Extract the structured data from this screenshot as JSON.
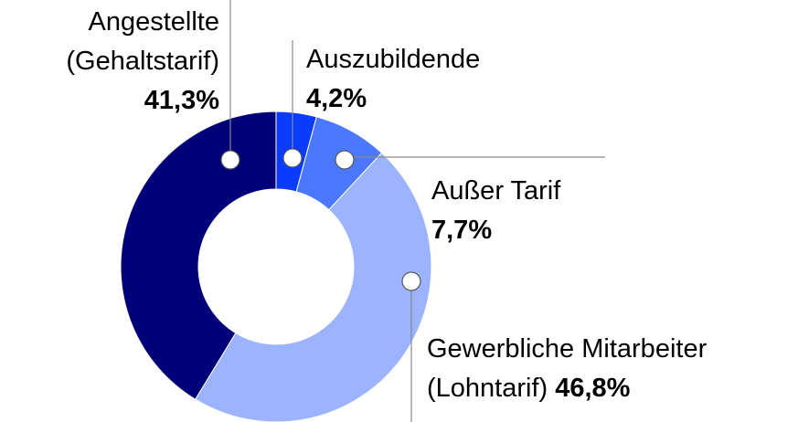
{
  "chart_data": {
    "type": "donut",
    "categories": [
      "Auszubildende",
      "Außer Tarif",
      "Gewerbliche Mitarbeiter (Lohntarif)",
      "Angestellte (Gehaltstarif)"
    ],
    "values": [
      4.2,
      7.7,
      46.8,
      41.3
    ],
    "value_labels": [
      "4,2%",
      "7,7%",
      "46,8%",
      "41,3%"
    ],
    "colors": [
      "#0a3cff",
      "#4a78ff",
      "#9cb4ff",
      "#000078"
    ]
  }
}
